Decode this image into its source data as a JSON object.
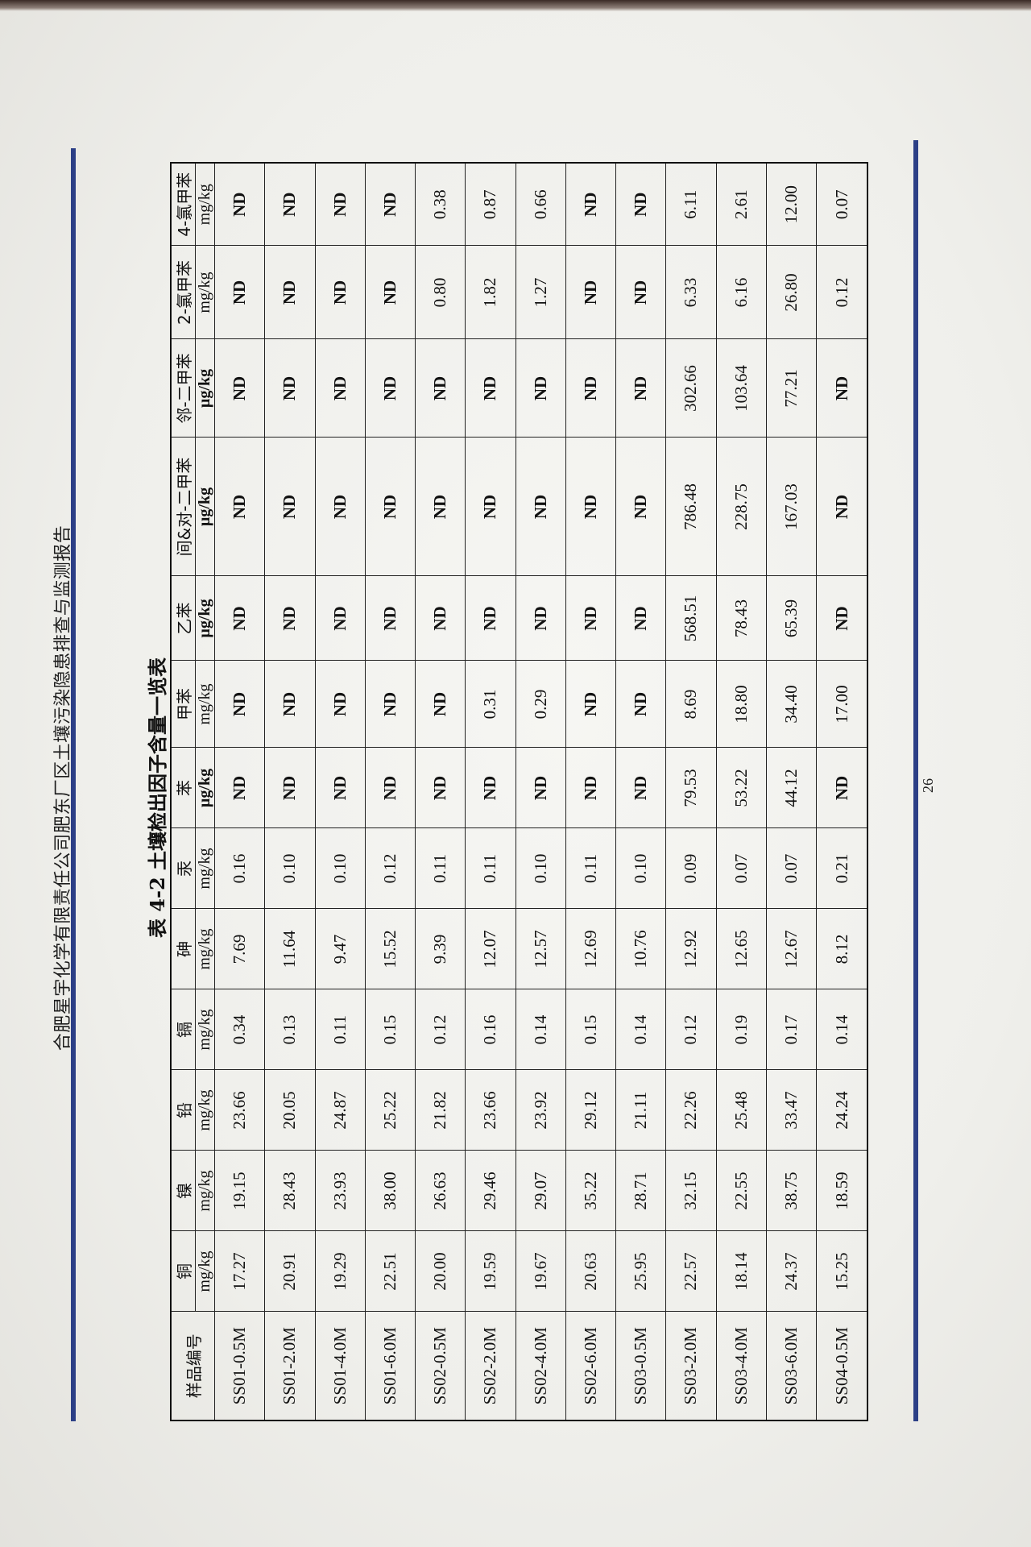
{
  "document": {
    "running_head": "合肥星宇化学有限责任公司肥东厂区土壤污染隐患排查与监测报告",
    "table_title": "表 4-2  土壤检出因子含量一览表",
    "page_number": "26",
    "accent_color": "#2c3f86"
  },
  "table": {
    "sample_header": "样品编号",
    "columns": [
      {
        "name": "铜",
        "unit": "mg/kg"
      },
      {
        "name": "镍",
        "unit": "mg/kg"
      },
      {
        "name": "铅",
        "unit": "mg/kg"
      },
      {
        "name": "镉",
        "unit": "mg/kg"
      },
      {
        "name": "砷",
        "unit": "mg/kg"
      },
      {
        "name": "汞",
        "unit": "mg/kg"
      },
      {
        "name": "苯",
        "unit": "µg/kg"
      },
      {
        "name": "甲苯",
        "unit": "mg/kg"
      },
      {
        "name": "乙苯",
        "unit": "µg/kg"
      },
      {
        "name": "间&对-二甲苯",
        "unit": "µg/kg"
      },
      {
        "name": "邻-二甲苯",
        "unit": "µg/kg"
      },
      {
        "name": "2-氯甲苯",
        "unit": "mg/kg"
      },
      {
        "name": "4-氯甲苯",
        "unit": "mg/kg"
      }
    ],
    "rows": [
      {
        "sample": "SS01-0.5M",
        "values": [
          "17.27",
          "19.15",
          "23.66",
          "0.34",
          "7.69",
          "0.16",
          "ND",
          "ND",
          "ND",
          "ND",
          "ND",
          "ND",
          "ND"
        ]
      },
      {
        "sample": "SS01-2.0M",
        "values": [
          "20.91",
          "28.43",
          "20.05",
          "0.13",
          "11.64",
          "0.10",
          "ND",
          "ND",
          "ND",
          "ND",
          "ND",
          "ND",
          "ND"
        ]
      },
      {
        "sample": "SS01-4.0M",
        "values": [
          "19.29",
          "23.93",
          "24.87",
          "0.11",
          "9.47",
          "0.10",
          "ND",
          "ND",
          "ND",
          "ND",
          "ND",
          "ND",
          "ND"
        ]
      },
      {
        "sample": "SS01-6.0M",
        "values": [
          "22.51",
          "38.00",
          "25.22",
          "0.15",
          "15.52",
          "0.12",
          "ND",
          "ND",
          "ND",
          "ND",
          "ND",
          "ND",
          "ND"
        ]
      },
      {
        "sample": "SS02-0.5M",
        "values": [
          "20.00",
          "26.63",
          "21.82",
          "0.12",
          "9.39",
          "0.11",
          "ND",
          "ND",
          "ND",
          "ND",
          "ND",
          "0.80",
          "0.38"
        ]
      },
      {
        "sample": "SS02-2.0M",
        "values": [
          "19.59",
          "29.46",
          "23.66",
          "0.16",
          "12.07",
          "0.11",
          "ND",
          "0.31",
          "ND",
          "ND",
          "ND",
          "1.82",
          "0.87"
        ]
      },
      {
        "sample": "SS02-4.0M",
        "values": [
          "19.67",
          "29.07",
          "23.92",
          "0.14",
          "12.57",
          "0.10",
          "ND",
          "0.29",
          "ND",
          "ND",
          "ND",
          "1.27",
          "0.66"
        ]
      },
      {
        "sample": "SS02-6.0M",
        "values": [
          "20.63",
          "35.22",
          "29.12",
          "0.15",
          "12.69",
          "0.11",
          "ND",
          "ND",
          "ND",
          "ND",
          "ND",
          "ND",
          "ND"
        ]
      },
      {
        "sample": "SS03-0.5M",
        "values": [
          "25.95",
          "28.71",
          "21.11",
          "0.14",
          "10.76",
          "0.10",
          "ND",
          "ND",
          "ND",
          "ND",
          "ND",
          "ND",
          "ND"
        ]
      },
      {
        "sample": "SS03-2.0M",
        "values": [
          "22.57",
          "32.15",
          "22.26",
          "0.12",
          "12.92",
          "0.09",
          "79.53",
          "8.69",
          "568.51",
          "786.48",
          "302.66",
          "6.33",
          "6.11"
        ]
      },
      {
        "sample": "SS03-4.0M",
        "values": [
          "18.14",
          "22.55",
          "25.48",
          "0.19",
          "12.65",
          "0.07",
          "53.22",
          "18.80",
          "78.43",
          "228.75",
          "103.64",
          "6.16",
          "2.61"
        ]
      },
      {
        "sample": "SS03-6.0M",
        "values": [
          "24.37",
          "38.75",
          "33.47",
          "0.17",
          "12.67",
          "0.07",
          "44.12",
          "34.40",
          "65.39",
          "167.03",
          "77.21",
          "26.80",
          "12.00"
        ]
      },
      {
        "sample": "SS04-0.5M",
        "values": [
          "15.25",
          "18.59",
          "24.24",
          "0.14",
          "8.12",
          "0.21",
          "ND",
          "17.00",
          "ND",
          "ND",
          "ND",
          "0.12",
          "0.07"
        ]
      }
    ]
  }
}
